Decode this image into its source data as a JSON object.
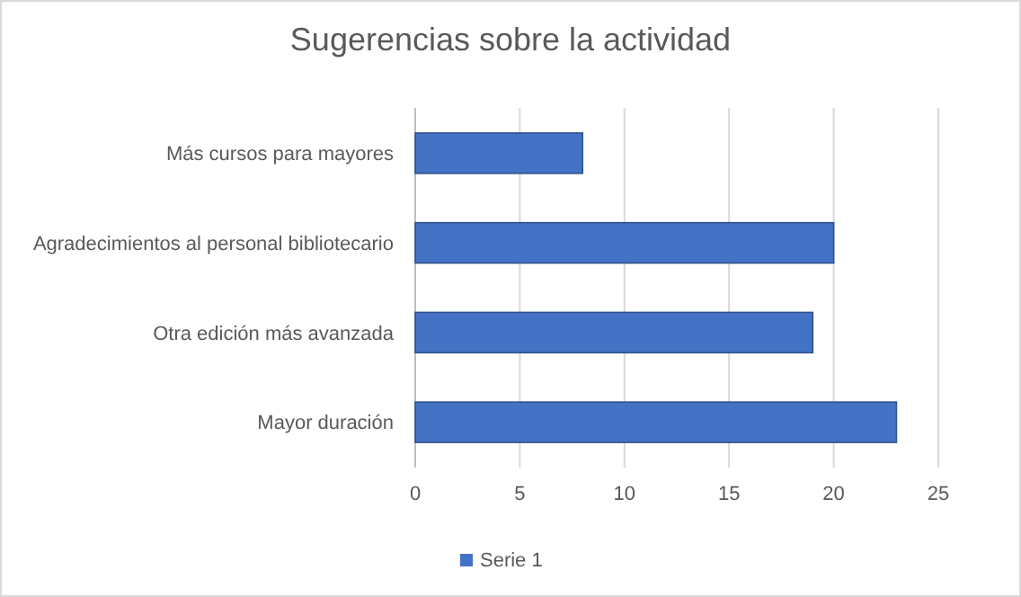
{
  "chart_data": {
    "type": "bar",
    "orientation": "horizontal",
    "title": "Sugerencias sobre la actividad",
    "categories": [
      "Más cursos para mayores",
      "Agradecimientos al personal bibliotecario",
      "Otra edición más avanzada",
      "Mayor duración"
    ],
    "series": [
      {
        "name": "Serie 1",
        "color": "#4472c4",
        "values": [
          8,
          20,
          19,
          23
        ]
      }
    ],
    "xlim": [
      0,
      25
    ],
    "xticks": [
      0,
      5,
      10,
      15,
      20,
      25
    ],
    "grid": "x",
    "legend": "bottom"
  }
}
